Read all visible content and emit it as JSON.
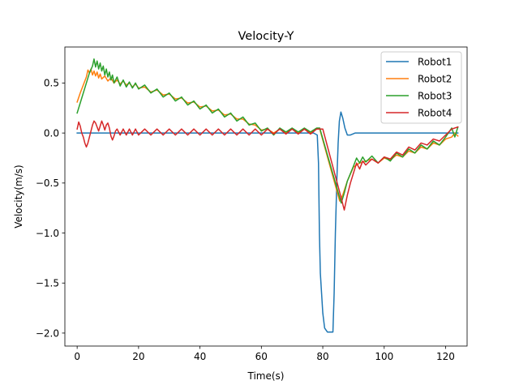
{
  "chart_data": {
    "type": "line",
    "title": "Velocity-Y",
    "xlabel": "Time(s)",
    "ylabel": "Velocity(m/s)",
    "xlim": [
      -4,
      127
    ],
    "ylim": [
      -2.13,
      0.86
    ],
    "xticks": [
      0,
      20,
      40,
      60,
      80,
      100,
      120
    ],
    "xtick_labels": [
      "0",
      "20",
      "40",
      "60",
      "80",
      "100",
      "120"
    ],
    "yticks": [
      0.5,
      0.0,
      -0.5,
      -1.0,
      -1.5,
      -2.0
    ],
    "ytick_labels": [
      "0.5",
      "0.0",
      "−0.5",
      "−1.0",
      "−1.5",
      "−2.0"
    ],
    "grid": false,
    "legend_position": "top-right",
    "series": [
      {
        "name": "Robot1",
        "color": "#1f77b4",
        "points": [
          [
            0,
            0
          ],
          [
            77,
            0
          ],
          [
            78.2,
            -0.02
          ],
          [
            78.6,
            -0.3
          ],
          [
            78.9,
            -1.0
          ],
          [
            79.2,
            -1.4
          ],
          [
            79.6,
            -1.6
          ],
          [
            80,
            -1.8
          ],
          [
            80.6,
            -1.95
          ],
          [
            81.5,
            -1.99
          ],
          [
            83.3,
            -1.99
          ],
          [
            83.7,
            -1.6
          ],
          [
            84.1,
            -1.0
          ],
          [
            84.6,
            -0.45
          ],
          [
            85,
            -0.1
          ],
          [
            85.4,
            0.12
          ],
          [
            85.9,
            0.21
          ],
          [
            86.5,
            0.15
          ],
          [
            87.2,
            0.05
          ],
          [
            88,
            -0.02
          ],
          [
            89,
            -0.02
          ],
          [
            90.5,
            0
          ],
          [
            124,
            0
          ]
        ]
      },
      {
        "name": "Robot2",
        "color": "#ff7f0e",
        "points": [
          [
            0,
            0.31
          ],
          [
            1,
            0.4
          ],
          [
            2,
            0.48
          ],
          [
            3,
            0.56
          ],
          [
            3.5,
            0.63
          ],
          [
            4,
            0.6
          ],
          [
            4.5,
            0.64
          ],
          [
            5,
            0.58
          ],
          [
            5.5,
            0.62
          ],
          [
            6,
            0.57
          ],
          [
            6.5,
            0.61
          ],
          [
            7,
            0.55
          ],
          [
            7.5,
            0.59
          ],
          [
            8,
            0.54
          ],
          [
            9,
            0.57
          ],
          [
            10,
            0.52
          ],
          [
            11,
            0.55
          ],
          [
            12,
            0.5
          ],
          [
            13,
            0.53
          ],
          [
            14,
            0.49
          ],
          [
            15,
            0.52
          ],
          [
            16,
            0.48
          ],
          [
            17,
            0.5
          ],
          [
            18,
            0.46
          ],
          [
            19,
            0.49
          ],
          [
            20,
            0.45
          ],
          [
            22,
            0.46
          ],
          [
            24,
            0.41
          ],
          [
            26,
            0.43
          ],
          [
            28,
            0.38
          ],
          [
            30,
            0.39
          ],
          [
            32,
            0.34
          ],
          [
            34,
            0.35
          ],
          [
            36,
            0.3
          ],
          [
            38,
            0.31
          ],
          [
            40,
            0.26
          ],
          [
            42,
            0.27
          ],
          [
            44,
            0.22
          ],
          [
            46,
            0.23
          ],
          [
            48,
            0.18
          ],
          [
            50,
            0.19
          ],
          [
            52,
            0.14
          ],
          [
            54,
            0.14
          ],
          [
            56,
            0.09
          ],
          [
            58,
            0.08
          ],
          [
            60,
            0.03
          ],
          [
            62,
            0.04
          ],
          [
            64,
            0
          ],
          [
            66,
            0.04
          ],
          [
            68,
            0
          ],
          [
            70,
            0.04
          ],
          [
            72,
            0
          ],
          [
            74,
            0.04
          ],
          [
            76,
            0
          ],
          [
            78,
            0.04
          ],
          [
            79,
            0.04
          ],
          [
            85.5,
            -0.68
          ],
          [
            86.5,
            -0.62
          ],
          [
            88,
            -0.48
          ],
          [
            90,
            -0.34
          ],
          [
            92,
            -0.3
          ],
          [
            94,
            -0.28
          ],
          [
            96,
            -0.26
          ],
          [
            98,
            -0.3
          ],
          [
            100,
            -0.25
          ],
          [
            102,
            -0.27
          ],
          [
            104,
            -0.22
          ],
          [
            106,
            -0.24
          ],
          [
            108,
            -0.18
          ],
          [
            110,
            -0.2
          ],
          [
            112,
            -0.14
          ],
          [
            114,
            -0.16
          ],
          [
            116,
            -0.1
          ],
          [
            118,
            -0.12
          ],
          [
            120,
            -0.06
          ],
          [
            122,
            -0.04
          ],
          [
            123,
            0
          ],
          [
            124,
            -0.03
          ]
        ]
      },
      {
        "name": "Robot3",
        "color": "#2ca02c",
        "points": [
          [
            0,
            0.2
          ],
          [
            1,
            0.3
          ],
          [
            2,
            0.4
          ],
          [
            3,
            0.5
          ],
          [
            4,
            0.6
          ],
          [
            5,
            0.67
          ],
          [
            5.5,
            0.74
          ],
          [
            6,
            0.66
          ],
          [
            6.5,
            0.72
          ],
          [
            7,
            0.64
          ],
          [
            7.5,
            0.7
          ],
          [
            8,
            0.62
          ],
          [
            8.5,
            0.67
          ],
          [
            9,
            0.58
          ],
          [
            9.5,
            0.64
          ],
          [
            10,
            0.56
          ],
          [
            10.5,
            0.61
          ],
          [
            11,
            0.53
          ],
          [
            11.5,
            0.58
          ],
          [
            12,
            0.5
          ],
          [
            13,
            0.56
          ],
          [
            14,
            0.47
          ],
          [
            15,
            0.53
          ],
          [
            16,
            0.46
          ],
          [
            17,
            0.51
          ],
          [
            18,
            0.45
          ],
          [
            19,
            0.5
          ],
          [
            20,
            0.44
          ],
          [
            22,
            0.48
          ],
          [
            24,
            0.4
          ],
          [
            26,
            0.44
          ],
          [
            28,
            0.36
          ],
          [
            30,
            0.4
          ],
          [
            32,
            0.32
          ],
          [
            34,
            0.36
          ],
          [
            36,
            0.28
          ],
          [
            38,
            0.32
          ],
          [
            40,
            0.24
          ],
          [
            42,
            0.28
          ],
          [
            44,
            0.2
          ],
          [
            46,
            0.24
          ],
          [
            48,
            0.16
          ],
          [
            50,
            0.2
          ],
          [
            52,
            0.12
          ],
          [
            54,
            0.16
          ],
          [
            56,
            0.08
          ],
          [
            58,
            0.1
          ],
          [
            60,
            0.02
          ],
          [
            62,
            0.05
          ],
          [
            64,
            -0.02
          ],
          [
            66,
            0.05
          ],
          [
            68,
            0.01
          ],
          [
            70,
            0.05
          ],
          [
            72,
            0.01
          ],
          [
            74,
            0.05
          ],
          [
            76,
            0.01
          ],
          [
            78,
            0.05
          ],
          [
            79,
            0.05
          ],
          [
            86,
            -0.7
          ],
          [
            87,
            -0.6
          ],
          [
            88,
            -0.48
          ],
          [
            90,
            -0.33
          ],
          [
            91,
            -0.25
          ],
          [
            92,
            -0.3
          ],
          [
            93,
            -0.24
          ],
          [
            94,
            -0.29
          ],
          [
            96,
            -0.23
          ],
          [
            98,
            -0.3
          ],
          [
            100,
            -0.24
          ],
          [
            102,
            -0.28
          ],
          [
            104,
            -0.2
          ],
          [
            106,
            -0.24
          ],
          [
            108,
            -0.16
          ],
          [
            110,
            -0.2
          ],
          [
            112,
            -0.12
          ],
          [
            114,
            -0.16
          ],
          [
            116,
            -0.08
          ],
          [
            118,
            -0.12
          ],
          [
            120,
            -0.04
          ],
          [
            122,
            0.05
          ],
          [
            123,
            -0.04
          ],
          [
            124,
            0.06
          ]
        ]
      },
      {
        "name": "Robot4",
        "color": "#d62728",
        "points": [
          [
            0,
            0.04
          ],
          [
            0.5,
            0.11
          ],
          [
            1,
            0.07
          ],
          [
            1.5,
            0
          ],
          [
            2,
            -0.04
          ],
          [
            2.5,
            -0.1
          ],
          [
            3,
            -0.14
          ],
          [
            3.5,
            -0.1
          ],
          [
            4,
            -0.04
          ],
          [
            4.5,
            0.02
          ],
          [
            5,
            0.08
          ],
          [
            5.5,
            0.12
          ],
          [
            6,
            0.1
          ],
          [
            6.5,
            0.06
          ],
          [
            7,
            0.02
          ],
          [
            7.5,
            0.07
          ],
          [
            8,
            0.12
          ],
          [
            8.5,
            0.08
          ],
          [
            9,
            0.03
          ],
          [
            9.5,
            0.08
          ],
          [
            10,
            0.1
          ],
          [
            10.5,
            0.05
          ],
          [
            11,
            -0.03
          ],
          [
            11.5,
            -0.07
          ],
          [
            12,
            -0.03
          ],
          [
            12.5,
            0.02
          ],
          [
            13,
            0.04
          ],
          [
            14,
            -0.02
          ],
          [
            15,
            0.04
          ],
          [
            16,
            -0.02
          ],
          [
            17,
            0.04
          ],
          [
            18,
            -0.02
          ],
          [
            19,
            0.04
          ],
          [
            20,
            -0.02
          ],
          [
            22,
            0.04
          ],
          [
            24,
            -0.02
          ],
          [
            26,
            0.04
          ],
          [
            28,
            -0.02
          ],
          [
            30,
            0.04
          ],
          [
            32,
            -0.02
          ],
          [
            34,
            0.04
          ],
          [
            36,
            -0.02
          ],
          [
            38,
            0.04
          ],
          [
            40,
            -0.02
          ],
          [
            42,
            0.04
          ],
          [
            44,
            -0.02
          ],
          [
            46,
            0.04
          ],
          [
            48,
            -0.02
          ],
          [
            50,
            0.04
          ],
          [
            52,
            -0.02
          ],
          [
            54,
            0.04
          ],
          [
            56,
            -0.02
          ],
          [
            58,
            0.04
          ],
          [
            60,
            -0.02
          ],
          [
            62,
            0.04
          ],
          [
            64,
            -0.01
          ],
          [
            66,
            0.04
          ],
          [
            68,
            -0.01
          ],
          [
            70,
            0.04
          ],
          [
            72,
            -0.01
          ],
          [
            74,
            0.04
          ],
          [
            76,
            -0.01
          ],
          [
            78,
            0.04
          ],
          [
            80,
            0.04
          ],
          [
            86,
            -0.65
          ],
          [
            87,
            -0.77
          ],
          [
            88,
            -0.62
          ],
          [
            89,
            -0.5
          ],
          [
            90,
            -0.4
          ],
          [
            91,
            -0.3
          ],
          [
            92,
            -0.36
          ],
          [
            93,
            -0.28
          ],
          [
            94,
            -0.32
          ],
          [
            96,
            -0.26
          ],
          [
            98,
            -0.3
          ],
          [
            100,
            -0.24
          ],
          [
            102,
            -0.26
          ],
          [
            104,
            -0.19
          ],
          [
            106,
            -0.22
          ],
          [
            108,
            -0.14
          ],
          [
            110,
            -0.17
          ],
          [
            112,
            -0.1
          ],
          [
            114,
            -0.12
          ],
          [
            116,
            -0.06
          ],
          [
            118,
            -0.08
          ],
          [
            120,
            -0.02
          ],
          [
            122,
            0.04
          ],
          [
            124,
            0.06
          ]
        ]
      }
    ]
  }
}
